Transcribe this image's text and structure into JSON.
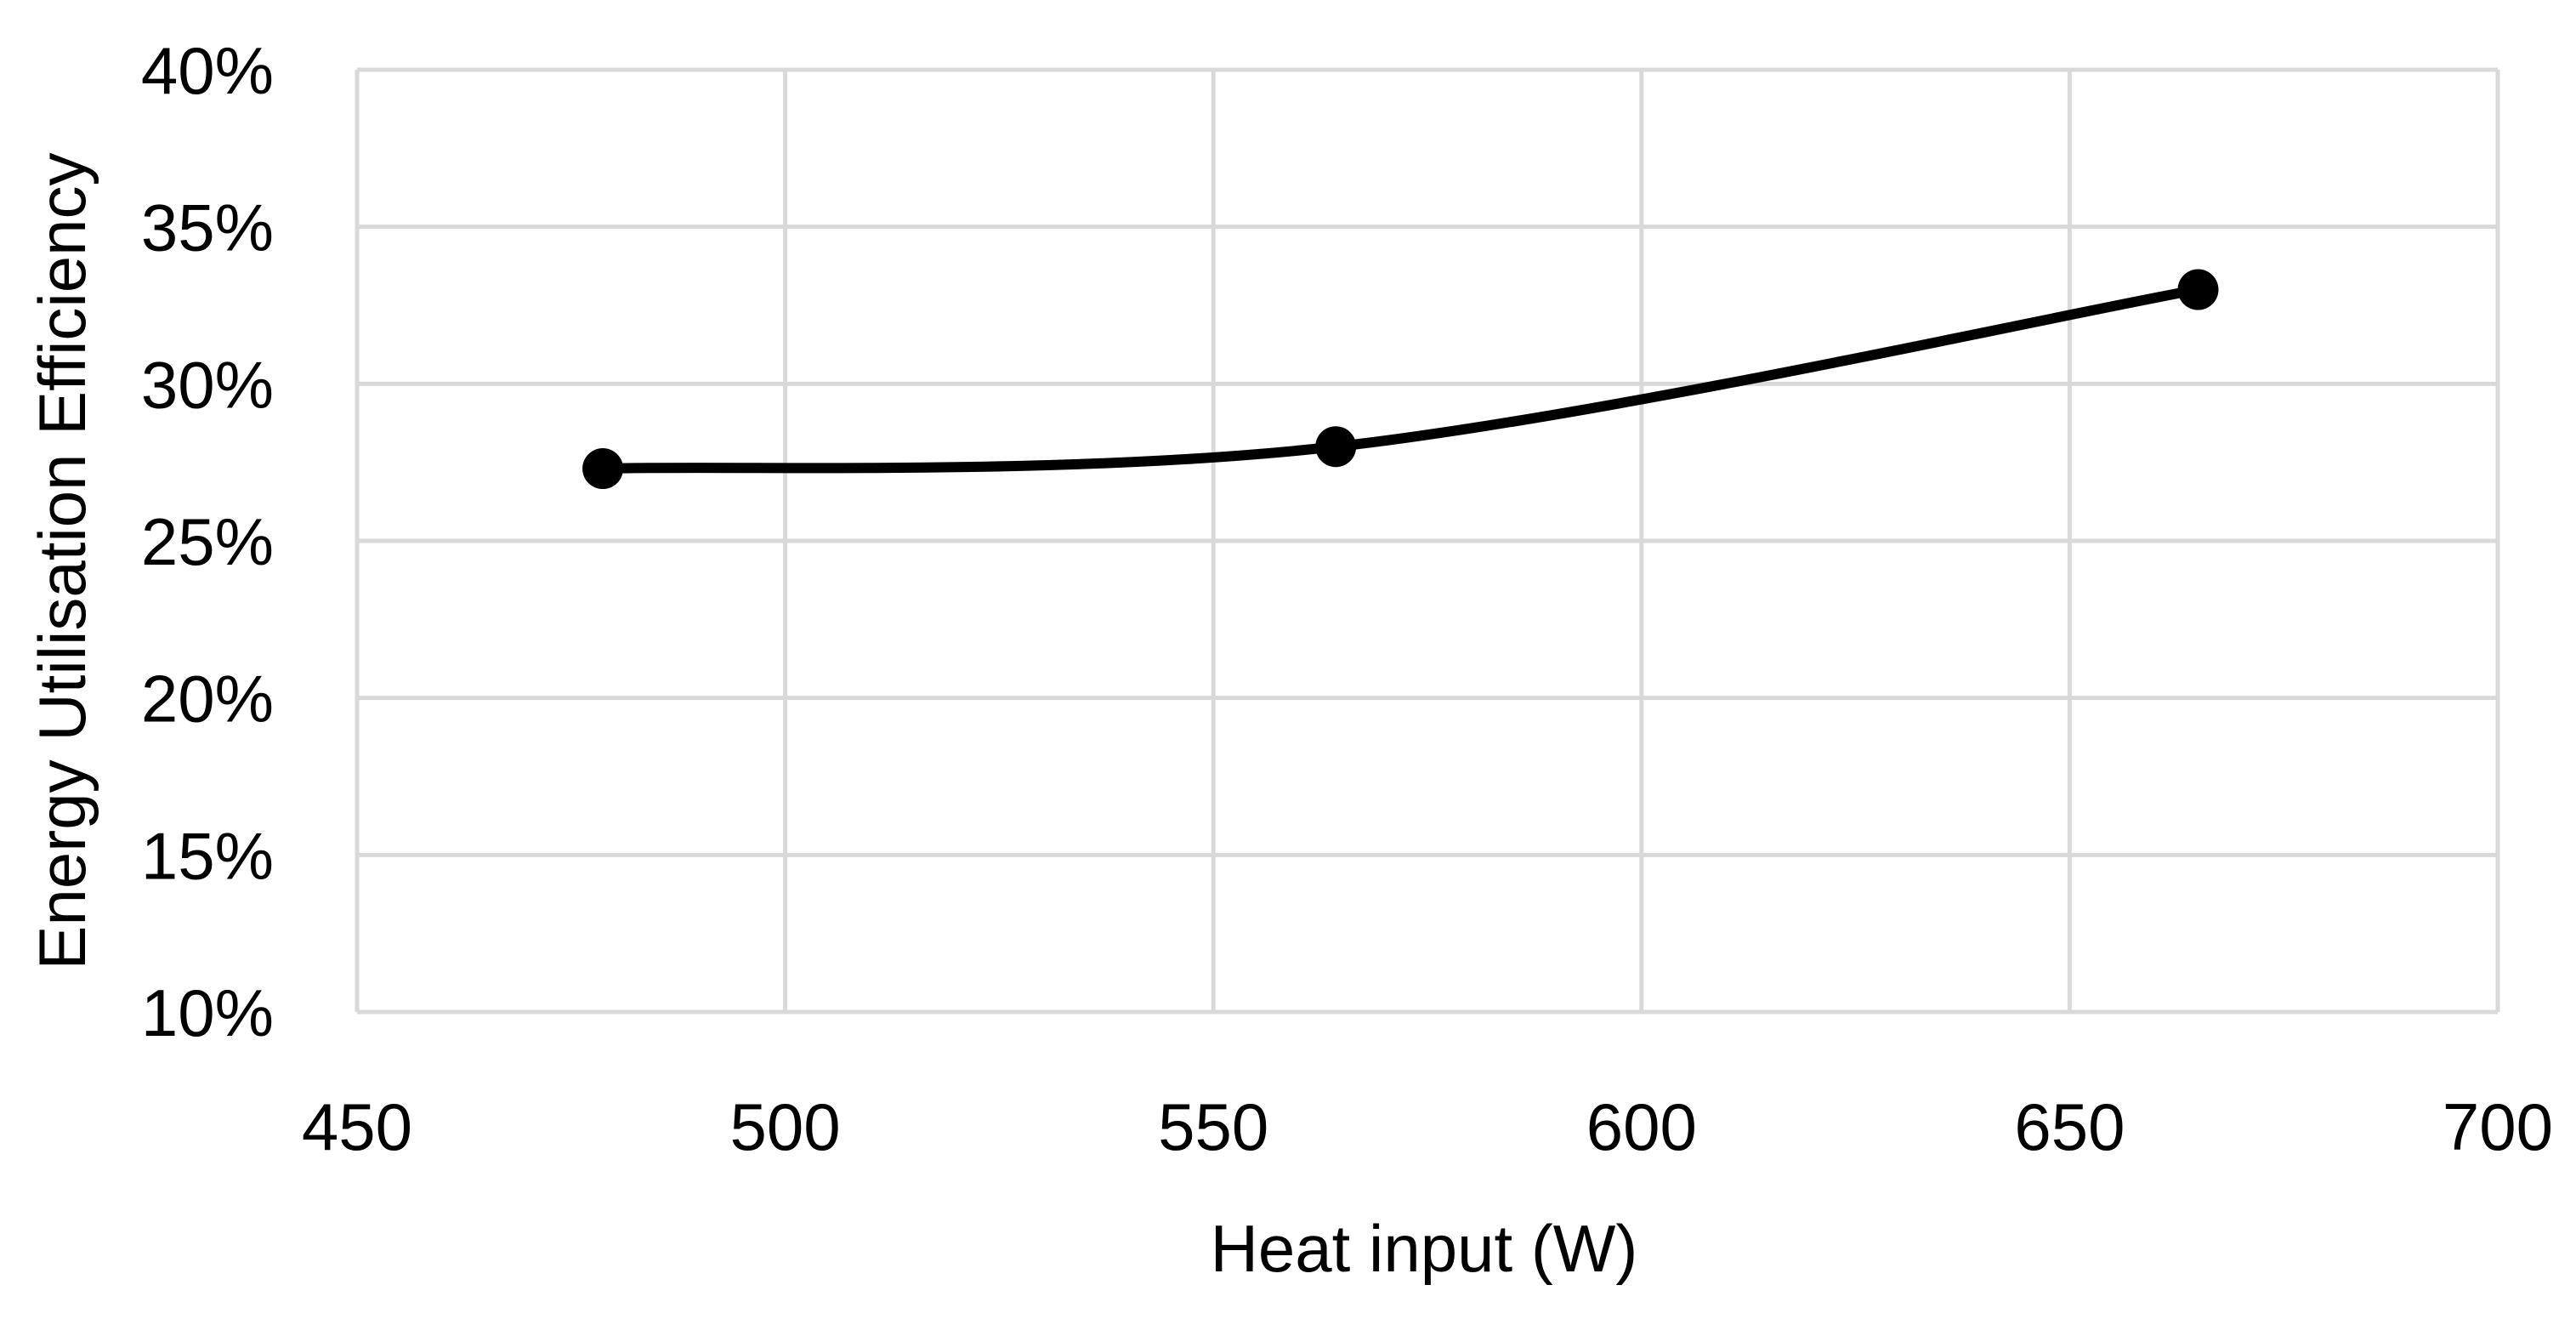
{
  "chart_data": {
    "type": "line",
    "title": "",
    "xlabel": "Heat input (W)",
    "ylabel": "Energy Utilisation Efficiency",
    "xlim": [
      450,
      700
    ],
    "ylim": [
      0.1,
      0.4
    ],
    "x_ticks": [
      "450",
      "500",
      "550",
      "600",
      "650",
      "700"
    ],
    "y_ticks": [
      "10%",
      "15%",
      "20%",
      "25%",
      "30%",
      "35%",
      "40%"
    ],
    "grid": true,
    "legend": "none",
    "smooth": true,
    "series": [
      {
        "x": [
          478.7,
          564.3,
          665.0
        ],
        "y": [
          0.273,
          0.28,
          0.33
        ],
        "color": "#000000",
        "marker": "circle"
      }
    ]
  }
}
